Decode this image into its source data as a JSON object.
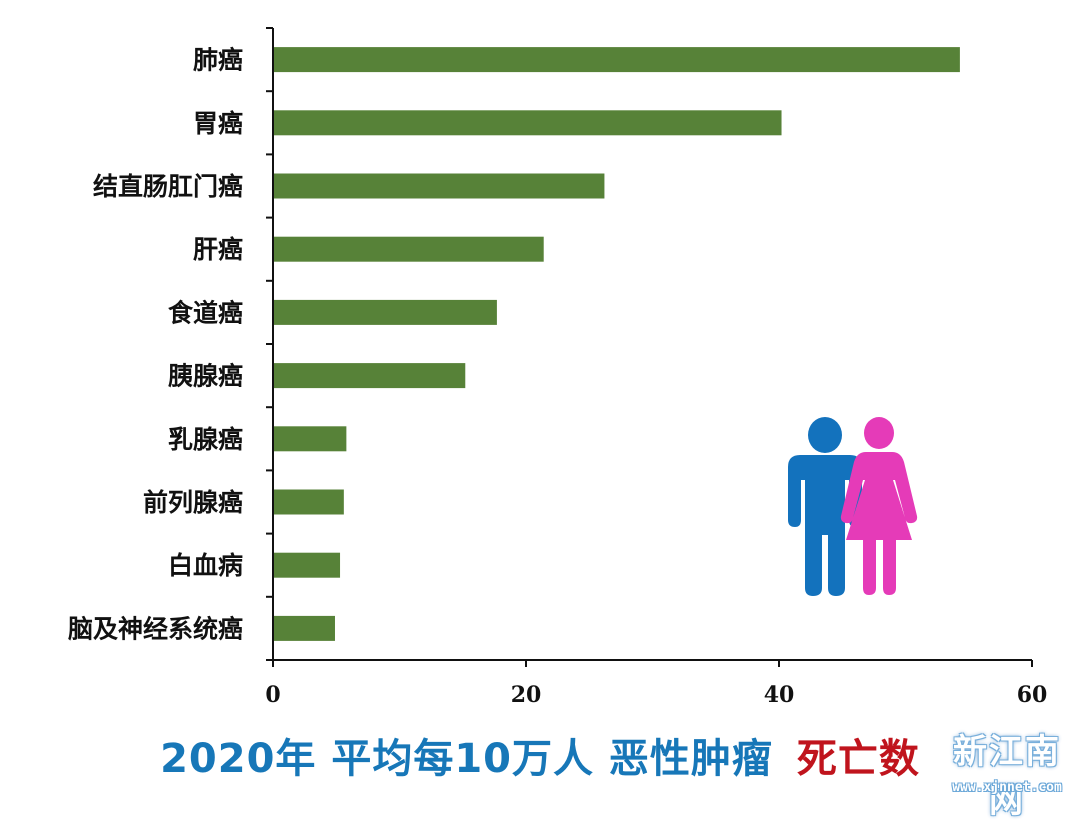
{
  "chart_data": {
    "type": "bar",
    "orientation": "horizontal",
    "categories": [
      "肺癌",
      "胃癌",
      "结直肠肛门癌",
      "肝癌",
      "食道癌",
      "胰腺癌",
      "乳腺癌",
      "前列腺癌",
      "白血病",
      "脑及神经系统癌"
    ],
    "values": [
      54.3,
      40.2,
      26.2,
      21.4,
      17.7,
      15.2,
      5.8,
      5.6,
      5.3,
      4.9
    ],
    "xlim": [
      0,
      60
    ],
    "xticks": [
      "0",
      "20",
      "40",
      "60"
    ],
    "bar_color": "#578238",
    "grid": false,
    "title": ""
  },
  "caption": {
    "part1": "2020年 平均每10万人 恶性肿瘤",
    "part2": "死亡数"
  },
  "icon": {
    "name": "male-female-people-icon",
    "male_color": "#1372bd",
    "female_color": "#e53bb8"
  },
  "watermark": {
    "title": "新江南网",
    "url": "www.xjnnet.com"
  }
}
